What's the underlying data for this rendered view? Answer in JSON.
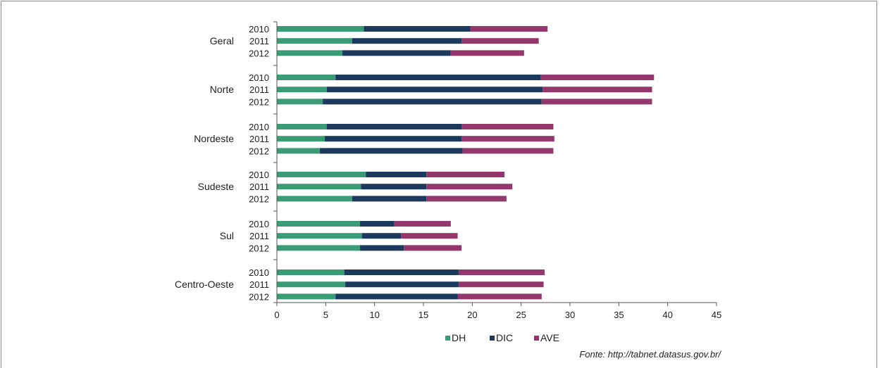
{
  "chart_data": {
    "type": "bar",
    "orientation": "horizontal",
    "stacked": true,
    "groups": [
      "Geral",
      "Norte",
      "Nordeste",
      "Sudeste",
      "Sul",
      "Centro-Oeste"
    ],
    "years": [
      "2010",
      "2011",
      "2012"
    ],
    "xlim": [
      0,
      45
    ],
    "xticks": [
      "0",
      "5",
      "10",
      "15",
      "20",
      "25",
      "30",
      "35",
      "40",
      "45"
    ],
    "legend_position": "bottom",
    "series": [
      {
        "name": "DH",
        "color": "#3a9c74",
        "values": [
          [
            8.9,
            7.7,
            6.7
          ],
          [
            6.0,
            5.1,
            4.7
          ],
          [
            5.1,
            4.9,
            4.4
          ],
          [
            9.1,
            8.6,
            7.7
          ],
          [
            8.5,
            8.7,
            8.5
          ],
          [
            6.9,
            7.0,
            6.0
          ]
        ]
      },
      {
        "name": "DIC",
        "color": "#1c3a5e",
        "values": [
          [
            10.9,
            11.2,
            11.1
          ],
          [
            21.0,
            22.1,
            22.4
          ],
          [
            13.8,
            14.0,
            14.6
          ],
          [
            6.2,
            6.7,
            7.6
          ],
          [
            3.5,
            4.0,
            4.5
          ],
          [
            11.7,
            11.6,
            12.5
          ]
        ]
      },
      {
        "name": "AVE",
        "color": "#94376c",
        "values": [
          [
            7.9,
            7.9,
            7.5
          ],
          [
            11.6,
            11.2,
            11.3
          ],
          [
            9.4,
            9.5,
            9.3
          ],
          [
            8.0,
            8.8,
            8.2
          ],
          [
            5.8,
            5.8,
            5.9
          ],
          [
            8.8,
            8.7,
            8.6
          ]
        ]
      }
    ],
    "source": "Fonte: http://tabnet.datasus.gov.br/"
  }
}
